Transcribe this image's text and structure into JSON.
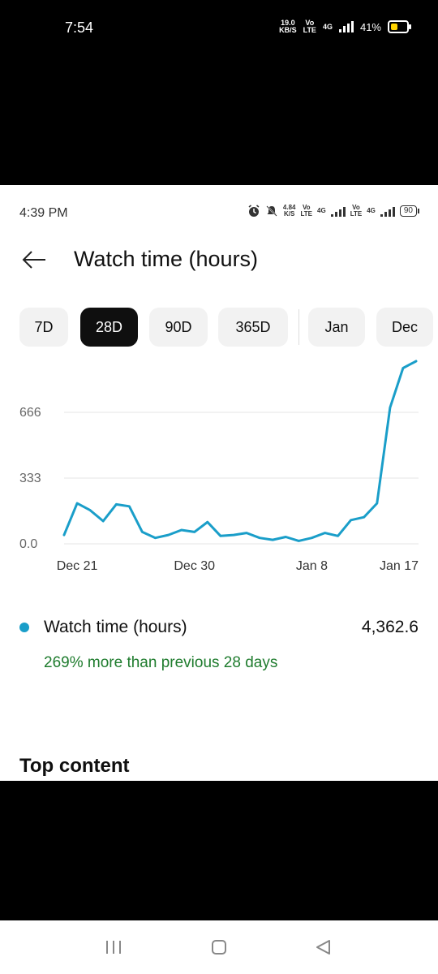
{
  "outer_status": {
    "time": "7:54",
    "speed_value": "19.0",
    "speed_unit": "KB/S",
    "volte_top": "Vo",
    "volte_bottom": "LTE",
    "network": "4G",
    "battery": "41%"
  },
  "inner_status": {
    "time": "4:39 PM",
    "speed_value": "4.84",
    "speed_unit": "K/S",
    "volte1_top": "Vo",
    "volte1_bottom": "LTE",
    "net1": "4G",
    "volte2_top": "Vo",
    "volte2_bottom": "LTE",
    "net2": "4G",
    "battery": "90"
  },
  "header": {
    "title": "Watch time (hours)"
  },
  "chips": [
    "7D",
    "28D",
    "90D",
    "365D",
    "Jan",
    "Dec"
  ],
  "selected_chip": "28D",
  "chart_data": {
    "type": "line",
    "xlabel": "",
    "ylabel": "",
    "ytick_labels": [
      "0.0",
      "333",
      "666"
    ],
    "yticks": [
      0,
      333,
      666
    ],
    "xtick_labels": [
      "Dec 21",
      "Dec 30",
      "Jan 8",
      "Jan 17"
    ],
    "xtick_index": [
      1,
      10,
      19,
      26
    ],
    "grid": true,
    "color": "#1a9ec9",
    "series": [
      {
        "values": [
          45,
          205,
          170,
          115,
          200,
          190,
          60,
          30,
          45,
          70,
          60,
          110,
          40,
          45,
          55,
          30,
          20,
          35,
          15,
          30,
          55,
          40,
          120,
          135,
          205,
          690,
          890,
          925
        ]
      }
    ],
    "ylim": [
      0,
      925
    ]
  },
  "summary": {
    "metric_label": "Watch time (hours)",
    "metric_value": "4,362.6",
    "comparison": "269% more than previous 28 days"
  },
  "section_title": "Top content",
  "icons": {
    "back": "arrow-left-icon",
    "alarm": "alarm-icon",
    "mute": "bell-off-icon",
    "nav_menu": "menu-lines-icon",
    "nav_home": "home-square-icon",
    "nav_back": "triangle-back-icon"
  }
}
